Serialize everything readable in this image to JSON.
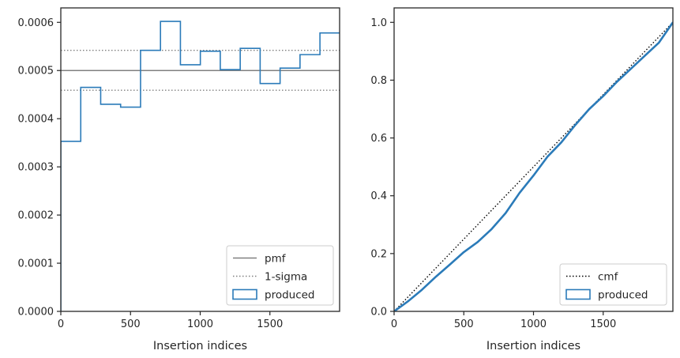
{
  "chart_data": [
    {
      "type": "line",
      "subtype": "step-histogram",
      "xlabel": "Insertion indices",
      "ylabel": "",
      "xlim": [
        0,
        2000
      ],
      "ylim": [
        0,
        0.00063
      ],
      "xticks": [
        0,
        500,
        1000,
        1500
      ],
      "xtick_labels": [
        "0",
        "500",
        "1000",
        "1500"
      ],
      "yticks": [
        0,
        0.0001,
        0.0002,
        0.0003,
        0.0004,
        0.0005,
        0.0006
      ],
      "ytick_labels": [
        "0.0000",
        "0.0001",
        "0.0002",
        "0.0003",
        "0.0004",
        "0.0005",
        "0.0006"
      ],
      "grid": false,
      "legend_position": "lower-right",
      "series": [
        {
          "name": "pmf",
          "kind": "hline",
          "y": 0.0005,
          "color": "#808080",
          "style": "solid"
        },
        {
          "name": "1-sigma",
          "kind": "hline",
          "y": [
            0.000459,
            0.000542
          ],
          "color": "#808080",
          "style": "dotted"
        },
        {
          "name": "produced",
          "kind": "step",
          "color": "#2b7bb9",
          "bin_edges": [
            0,
            143,
            286,
            429,
            572,
            715,
            858,
            1001,
            1144,
            1287,
            1430,
            1573,
            1716,
            1859,
            2000
          ],
          "values": [
            0.000353,
            0.000465,
            0.00043,
            0.000424,
            0.000542,
            0.000602,
            0.000512,
            0.00054,
            0.000502,
            0.000546,
            0.000473,
            0.000505,
            0.000533,
            0.000578
          ]
        }
      ]
    },
    {
      "type": "line",
      "xlabel": "Insertion indices",
      "ylabel": "",
      "xlim": [
        0,
        2000
      ],
      "ylim": [
        0,
        1.05
      ],
      "xticks": [
        0,
        500,
        1000,
        1500
      ],
      "xtick_labels": [
        "0",
        "500",
        "1000",
        "1500"
      ],
      "yticks": [
        0,
        0.2,
        0.4,
        0.6,
        0.8,
        1.0
      ],
      "ytick_labels": [
        "0.0",
        "0.2",
        "0.4",
        "0.6",
        "0.8",
        "1.0"
      ],
      "grid": false,
      "legend_position": "lower-right",
      "series": [
        {
          "name": "cmf",
          "color": "#000000",
          "style": "dotted",
          "x": [
            0,
            2000
          ],
          "y": [
            0,
            1.0
          ]
        },
        {
          "name": "produced",
          "color": "#2b7bb9",
          "style": "solid",
          "x": [
            0,
            100,
            200,
            300,
            400,
            500,
            600,
            700,
            800,
            900,
            1000,
            1100,
            1200,
            1300,
            1400,
            1500,
            1600,
            1700,
            1800,
            1900,
            2000
          ],
          "y": [
            0,
            0.035,
            0.075,
            0.12,
            0.162,
            0.205,
            0.24,
            0.285,
            0.34,
            0.41,
            0.47,
            0.535,
            0.585,
            0.645,
            0.7,
            0.745,
            0.795,
            0.84,
            0.885,
            0.93,
            1.0
          ]
        }
      ]
    }
  ]
}
